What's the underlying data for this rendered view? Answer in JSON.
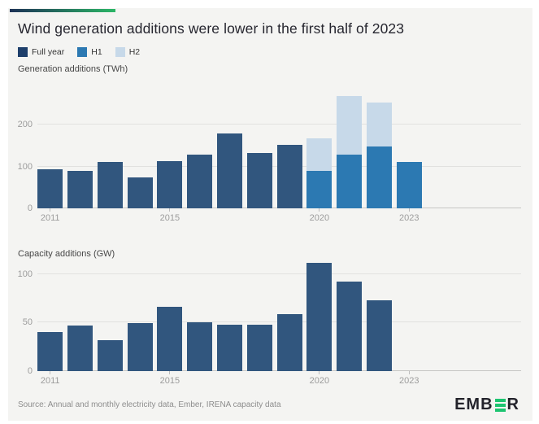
{
  "header": {
    "title": "Wind generation additions were lower in the first half of 2023"
  },
  "legend": {
    "items": [
      {
        "label": "Full year",
        "color": "#1e3f6b"
      },
      {
        "label": "H1",
        "color": "#2c79b2"
      },
      {
        "label": "H2",
        "color": "#c7d9e9"
      }
    ]
  },
  "chart_data": [
    {
      "type": "bar",
      "stacked": true,
      "title": "Generation additions (TWh)",
      "categories": [
        "2011",
        "2012",
        "2013",
        "2014",
        "2015",
        "2016",
        "2017",
        "2018",
        "2019",
        "2020",
        "2021",
        "2022",
        "2023"
      ],
      "series": [
        {
          "name": "Full year",
          "color": "#31567e",
          "values": [
            94,
            90,
            111,
            74,
            113,
            129,
            179,
            132,
            152,
            null,
            null,
            null,
            null
          ]
        },
        {
          "name": "H1",
          "color": "#2c79b2",
          "values": [
            null,
            null,
            null,
            null,
            null,
            null,
            null,
            null,
            null,
            89,
            128,
            147,
            110
          ]
        },
        {
          "name": "H2",
          "color": "#c7d9e9",
          "values": [
            null,
            null,
            null,
            null,
            null,
            null,
            null,
            null,
            null,
            79,
            140,
            105,
            null
          ]
        }
      ],
      "yticks": [
        0,
        100,
        200
      ],
      "xticks": [
        "2011",
        "2015",
        "2020",
        "2023"
      ],
      "ylim": [
        0,
        280
      ],
      "grid": true,
      "legend_position": "top"
    },
    {
      "type": "bar",
      "stacked": false,
      "title": "Capacity additions (GW)",
      "categories": [
        "2011",
        "2012",
        "2013",
        "2014",
        "2015",
        "2016",
        "2017",
        "2018",
        "2019",
        "2020",
        "2021",
        "2022",
        "2023"
      ],
      "series": [
        {
          "name": "Full year",
          "color": "#31567e",
          "values": [
            40,
            47,
            32,
            49,
            66,
            50,
            48,
            48,
            59,
            111,
            92,
            73,
            null
          ]
        }
      ],
      "yticks": [
        0,
        50,
        100
      ],
      "xticks": [
        "2011",
        "2015",
        "2020",
        "2023"
      ],
      "ylim": [
        0,
        113
      ],
      "grid": true
    }
  ],
  "footer": {
    "source": "Source: Annual and monthly electricity data, Ember, IRENA capacity data",
    "logo_prefix": "EMB",
    "logo_suffix": "R",
    "logo_green": "#1dc470"
  }
}
